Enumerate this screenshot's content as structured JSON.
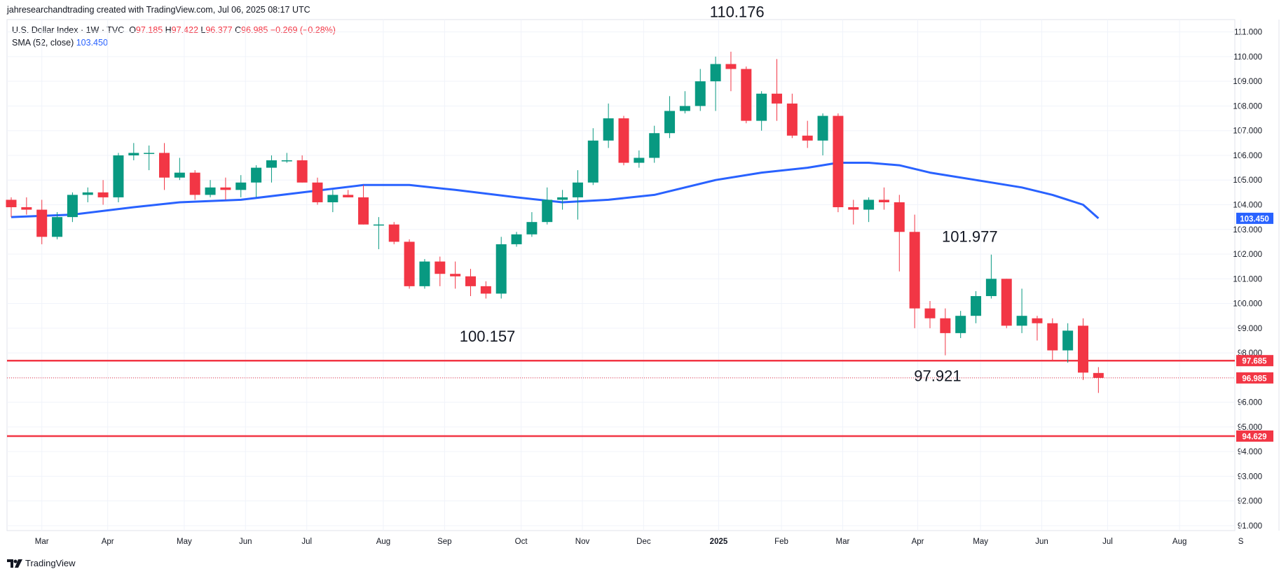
{
  "header": {
    "attribution": "jahresearchandtrading created with TradingView.com, Jul 06, 2025 08:17 UTC"
  },
  "legend": {
    "symbol": "U.S. Dollar Index · 1W · TVC",
    "o_label": "O",
    "o_value": "97.185",
    "h_label": "H",
    "h_value": "97.422",
    "l_label": "L",
    "l_value": "96.377",
    "c_label": "C",
    "c_value": "96.985",
    "change": "−0.269 (−0.28%)",
    "sma_label": "SMA (52, close)",
    "sma_value": "103.450"
  },
  "footer": {
    "brand": "TradingView"
  },
  "colors": {
    "up": "#089981",
    "down": "#f23645",
    "sma": "#2962ff",
    "level": "#f23645",
    "grid": "#f0f3fa"
  },
  "chart_data": {
    "type": "candlestick",
    "ylim": [
      90.8,
      111.5
    ],
    "y_ticks": [
      "91.000",
      "92.000",
      "93.000",
      "94.000",
      "95.000",
      "96.000",
      "97.000",
      "98.000",
      "99.000",
      "100.000",
      "101.000",
      "102.000",
      "103.000",
      "104.000",
      "105.000",
      "106.000",
      "107.000",
      "108.000",
      "109.000",
      "110.000",
      "111.000"
    ],
    "x_ticks": [
      {
        "label": "Mar",
        "i": 2
      },
      {
        "label": "Apr",
        "i": 6.3
      },
      {
        "label": "May",
        "i": 11.3
      },
      {
        "label": "Jun",
        "i": 15.3
      },
      {
        "label": "Jul",
        "i": 19.3
      },
      {
        "label": "Aug",
        "i": 24.3
      },
      {
        "label": "Sep",
        "i": 28.3
      },
      {
        "label": "Oct",
        "i": 33.3
      },
      {
        "label": "Nov",
        "i": 37.3
      },
      {
        "label": "Dec",
        "i": 41.3
      },
      {
        "label": "2025",
        "i": 46.2,
        "bold": true
      },
      {
        "label": "Feb",
        "i": 50.3
      },
      {
        "label": "Mar",
        "i": 54.3
      },
      {
        "label": "Apr",
        "i": 59.2
      },
      {
        "label": "May",
        "i": 63.3
      },
      {
        "label": "Jun",
        "i": 67.3
      },
      {
        "label": "Jul",
        "i": 71.6
      },
      {
        "label": "Aug",
        "i": 76.3
      },
      {
        "label": "S",
        "i": 80.3
      }
    ],
    "candles": [
      [
        104.2,
        104.3,
        103.5,
        103.9
      ],
      [
        103.9,
        104.3,
        103.6,
        103.8
      ],
      [
        103.8,
        104.2,
        102.4,
        102.7
      ],
      [
        102.7,
        103.7,
        102.6,
        103.5
      ],
      [
        103.5,
        104.5,
        103.3,
        104.4
      ],
      [
        104.4,
        104.7,
        104.1,
        104.5
      ],
      [
        104.5,
        105.0,
        104.0,
        104.3
      ],
      [
        104.3,
        106.1,
        104.1,
        106.0
      ],
      [
        106.0,
        106.5,
        105.8,
        106.1
      ],
      [
        106.1,
        106.4,
        105.4,
        106.1
      ],
      [
        106.1,
        106.5,
        104.6,
        105.1
      ],
      [
        105.1,
        105.9,
        105.0,
        105.3
      ],
      [
        105.3,
        105.4,
        104.2,
        104.4
      ],
      [
        104.4,
        105.0,
        104.3,
        104.7
      ],
      [
        104.7,
        105.1,
        104.2,
        104.6
      ],
      [
        104.6,
        105.2,
        104.3,
        104.9
      ],
      [
        104.9,
        105.6,
        104.3,
        105.5
      ],
      [
        105.5,
        106.0,
        104.9,
        105.8
      ],
      [
        105.8,
        106.1,
        105.7,
        105.8
      ],
      [
        105.8,
        106.0,
        104.9,
        104.9
      ],
      [
        104.9,
        105.1,
        104.0,
        104.1
      ],
      [
        104.1,
        104.6,
        103.7,
        104.4
      ],
      [
        104.4,
        104.6,
        104.3,
        104.3
      ],
      [
        104.3,
        104.8,
        103.2,
        103.2
      ],
      [
        103.2,
        103.5,
        102.2,
        103.2
      ],
      [
        103.2,
        103.3,
        102.4,
        102.5
      ],
      [
        102.5,
        102.6,
        100.6,
        100.7
      ],
      [
        100.7,
        101.8,
        100.6,
        101.7
      ],
      [
        101.7,
        101.9,
        100.7,
        101.2
      ],
      [
        101.2,
        101.7,
        100.6,
        101.1
      ],
      [
        101.1,
        101.4,
        100.3,
        100.7
      ],
      [
        100.7,
        100.9,
        100.2,
        100.4
      ],
      [
        100.4,
        102.7,
        100.2,
        102.4
      ],
      [
        102.4,
        102.9,
        102.3,
        102.8
      ],
      [
        102.8,
        103.7,
        102.7,
        103.3
      ],
      [
        103.3,
        104.7,
        103.2,
        104.2
      ],
      [
        104.2,
        104.6,
        103.8,
        104.3
      ],
      [
        104.3,
        105.4,
        103.4,
        104.9
      ],
      [
        104.9,
        107.1,
        104.8,
        106.6
      ],
      [
        106.6,
        108.1,
        106.3,
        107.5
      ],
      [
        107.5,
        107.6,
        105.6,
        105.7
      ],
      [
        105.7,
        106.2,
        105.5,
        105.9
      ],
      [
        105.9,
        107.2,
        105.7,
        106.9
      ],
      [
        106.9,
        108.4,
        106.7,
        107.8
      ],
      [
        107.8,
        108.6,
        107.7,
        108.0
      ],
      [
        108.0,
        109.5,
        107.8,
        109.0
      ],
      [
        109.0,
        110.0,
        107.8,
        109.7
      ],
      [
        109.7,
        110.2,
        108.6,
        109.5
      ],
      [
        109.5,
        109.6,
        107.3,
        107.4
      ],
      [
        107.4,
        108.6,
        107.0,
        108.5
      ],
      [
        108.5,
        109.9,
        107.4,
        108.1
      ],
      [
        108.1,
        108.5,
        106.7,
        106.8
      ],
      [
        106.8,
        107.4,
        106.3,
        106.6
      ],
      [
        106.6,
        107.7,
        106.0,
        107.6
      ],
      [
        107.6,
        107.7,
        103.7,
        103.9
      ],
      [
        103.9,
        104.2,
        103.2,
        103.8
      ],
      [
        103.8,
        104.3,
        103.3,
        104.2
      ],
      [
        104.2,
        104.7,
        103.8,
        104.1
      ],
      [
        104.1,
        104.4,
        101.3,
        102.9
      ],
      [
        102.9,
        103.6,
        99.0,
        99.8
      ],
      [
        99.8,
        100.1,
        99.0,
        99.4
      ],
      [
        99.4,
        99.8,
        97.9,
        98.8
      ],
      [
        98.8,
        99.7,
        98.6,
        99.5
      ],
      [
        99.5,
        100.5,
        99.2,
        100.3
      ],
      [
        100.3,
        101.98,
        100.2,
        101.0
      ],
      [
        101.0,
        101.0,
        99.0,
        99.1
      ],
      [
        99.1,
        100.6,
        98.8,
        99.5
      ],
      [
        99.4,
        99.5,
        98.5,
        99.2
      ],
      [
        99.2,
        99.4,
        97.7,
        98.1
      ],
      [
        98.1,
        99.2,
        97.6,
        98.9
      ],
      [
        99.1,
        99.4,
        96.9,
        97.2
      ],
      [
        97.185,
        97.422,
        96.377,
        96.985
      ]
    ],
    "sma": [
      [
        0,
        103.5
      ],
      [
        4,
        103.6
      ],
      [
        8,
        103.9
      ],
      [
        11,
        104.1
      ],
      [
        15,
        104.2
      ],
      [
        19,
        104.5
      ],
      [
        23,
        104.8
      ],
      [
        26,
        104.8
      ],
      [
        29,
        104.6
      ],
      [
        33,
        104.3
      ],
      [
        36,
        104.1
      ],
      [
        39,
        104.2
      ],
      [
        42,
        104.4
      ],
      [
        46,
        105.0
      ],
      [
        49,
        105.3
      ],
      [
        52,
        105.5
      ],
      [
        54,
        105.7
      ],
      [
        56,
        105.7
      ],
      [
        58,
        105.6
      ],
      [
        60,
        105.3
      ],
      [
        63,
        105.0
      ],
      [
        66,
        104.7
      ],
      [
        68,
        104.4
      ],
      [
        70,
        104.0
      ],
      [
        71,
        103.45
      ]
    ],
    "levels": [
      {
        "value": 97.685,
        "label": "97.685"
      },
      {
        "value": 94.629,
        "label": "94.629"
      }
    ],
    "last_price": {
      "value": 96.985,
      "label": "96.985"
    },
    "sma_last": {
      "value": 103.45,
      "label": "103.450"
    },
    "annotations": [
      {
        "text": "110.176",
        "i": 47.4,
        "y": 111.6
      },
      {
        "text": "100.157",
        "i": 31.1,
        "y": 98.45
      },
      {
        "text": "101.977",
        "i": 62.6,
        "y": 102.5
      },
      {
        "text": "97.921",
        "i": 60.5,
        "y": 96.85
      }
    ]
  }
}
